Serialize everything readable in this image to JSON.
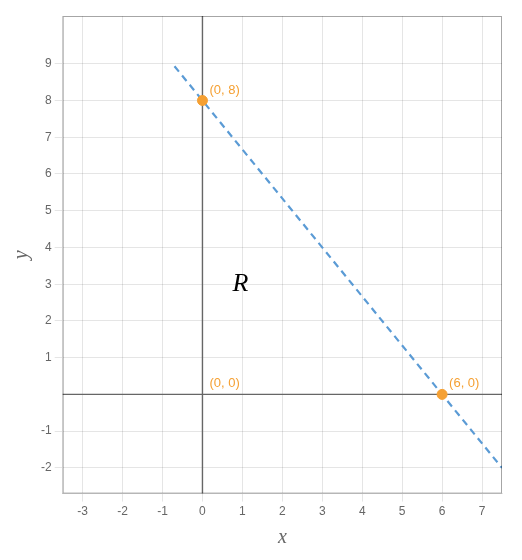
{
  "chart_data": {
    "type": "scatter",
    "x_label": "x",
    "y_label": "y",
    "xlim": [
      -3.5,
      7.5
    ],
    "ylim": [
      -2.7,
      10.3
    ],
    "xticks": [
      -3,
      -2,
      -1,
      0,
      1,
      2,
      3,
      4,
      5,
      6,
      7
    ],
    "yticks": [
      -2,
      -1,
      1,
      2,
      3,
      4,
      5,
      6,
      7,
      8,
      9
    ],
    "grid": true,
    "series": [
      {
        "type": "line",
        "line_style": "dashed",
        "color": "#5b9bd5",
        "x": [
          -0.7,
          7.5
        ],
        "values": [
          8.933333333333334,
          -2
        ]
      },
      {
        "type": "scatter",
        "marker": "circle",
        "color": "#f5a033",
        "x": [
          0,
          6
        ],
        "values": [
          8,
          0
        ]
      }
    ],
    "annotations": [
      {
        "text": "(0, 8)",
        "x": 0,
        "y": 8,
        "color": "#f5a033"
      },
      {
        "text": "(6, 0)",
        "x": 6,
        "y": 0,
        "color": "#f5a033"
      },
      {
        "text": "(0, 0)",
        "x": 0,
        "y": 0,
        "color": "#f5a033"
      },
      {
        "text": "R",
        "x": 0.75,
        "y": 3,
        "color": "#000000"
      }
    ]
  }
}
